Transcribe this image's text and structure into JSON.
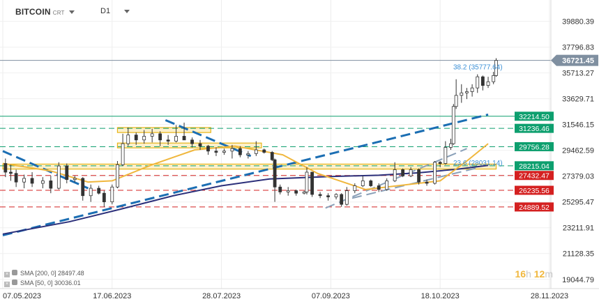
{
  "header": {
    "symbol": "BITCOIN",
    "symbol_suffix": "CRT",
    "timeframe": "D1"
  },
  "legend": [
    {
      "label": "SMA [200, 0]",
      "value": "28497.48",
      "color": "#2b2f7a"
    },
    {
      "label": "SMA [50, 0]",
      "value": "30036.01",
      "color": "#f0b73d"
    }
  ],
  "timer": {
    "hours": "16",
    "h_unit": "h",
    "minutes": "12",
    "m_unit": "m"
  },
  "chart_data": {
    "type": "candlestick",
    "x_range": [
      "2023-05-07",
      "2023-11-28"
    ],
    "ylim": [
      18300,
      41600
    ],
    "x_ticks": [
      {
        "label": "07.05.2023",
        "date": "2023-05-07"
      },
      {
        "label": "17.06.2023",
        "date": "2023-06-17"
      },
      {
        "label": "28.07.2023",
        "date": "2023-07-28"
      },
      {
        "label": "07.09.2023",
        "date": "2023-09-07"
      },
      {
        "label": "18.10.2023",
        "date": "2023-10-18"
      },
      {
        "label": "28.11.2023",
        "date": "2023-11-28"
      }
    ],
    "y_ticks": [
      {
        "label": "39880.39",
        "value": 39880.39
      },
      {
        "label": "37796.83",
        "value": 37796.83
      },
      {
        "label": "35713.27",
        "value": 35713.27
      },
      {
        "label": "33629.71",
        "value": 33629.71
      },
      {
        "label": "31546.15",
        "value": 31546.15
      },
      {
        "label": "29462.59",
        "value": 29462.59
      },
      {
        "label": "27379.03",
        "value": 27379.03
      },
      {
        "label": "25295.47",
        "value": 25295.47
      },
      {
        "label": "23211.91",
        "value": 23211.91
      },
      {
        "label": "21128.35",
        "value": 21128.35
      },
      {
        "label": "19044.79",
        "value": 19044.79
      }
    ],
    "current_price": {
      "label": "36721.45",
      "value": 36721.45,
      "color": "#7f8fa0"
    },
    "levels": [
      {
        "label": "32214.50",
        "value": 32214.5,
        "color": "#0d9f6e",
        "style": "solid"
      },
      {
        "label": "31236.46",
        "value": 31236.46,
        "color": "#0d9f6e",
        "style": "dashed"
      },
      {
        "label": "29756.28",
        "value": 29756.28,
        "color": "#0d9f6e",
        "style": "dashed"
      },
      {
        "label": "28215.04",
        "value": 28215.04,
        "color": "#0d9f6e",
        "style": "dashed"
      },
      {
        "label": "27432.47",
        "value": 27432.47,
        "color": "#d42020",
        "style": "dashed"
      },
      {
        "label": "26235.56",
        "value": 26235.56,
        "color": "#d42020",
        "style": "dashed"
      },
      {
        "label": "24889.52",
        "value": 24889.52,
        "color": "#d42020",
        "style": "dashed"
      }
    ],
    "fib_labels": [
      {
        "label": "38.2 (35777.64)",
        "value": 35777.64
      },
      {
        "label": "23.6 (28031.14)",
        "value": 28031.14
      }
    ],
    "sma200": [
      [
        "2023-05-07",
        22700
      ],
      [
        "2023-06-01",
        23700
      ],
      [
        "2023-06-20",
        24700
      ],
      [
        "2023-07-10",
        25800
      ],
      [
        "2023-07-28",
        26600
      ],
      [
        "2023-08-15",
        27150
      ],
      [
        "2023-09-07",
        27350
      ],
      [
        "2023-09-25",
        27450
      ],
      [
        "2023-10-10",
        27650
      ],
      [
        "2023-10-25",
        27950
      ],
      [
        "2023-11-05",
        28250
      ]
    ],
    "sma50": [
      [
        "2023-05-07",
        28400
      ],
      [
        "2023-05-25",
        27800
      ],
      [
        "2023-06-08",
        26900
      ],
      [
        "2023-06-17",
        27000
      ],
      [
        "2023-07-02",
        28300
      ],
      [
        "2023-07-18",
        29500
      ],
      [
        "2023-08-02",
        29800
      ],
      [
        "2023-08-20",
        29100
      ],
      [
        "2023-09-02",
        27600
      ],
      [
        "2023-09-20",
        26300
      ],
      [
        "2023-10-02",
        26600
      ],
      [
        "2023-10-18",
        27000
      ],
      [
        "2023-10-28",
        28600
      ],
      [
        "2023-11-05",
        30000
      ]
    ],
    "trendlines": [
      {
        "from": [
          "2023-05-07",
          22600
        ],
        "to": [
          "2023-11-05",
          32350
        ],
        "color": "#1b6eb3",
        "style": "dashed"
      },
      {
        "from": [
          "2023-05-07",
          29400
        ],
        "to": [
          "2023-06-08",
          26400
        ],
        "color": "#1b6eb3",
        "style": "dashed"
      },
      {
        "from": [
          "2023-07-07",
          31900
        ],
        "to": [
          "2023-08-08",
          29000
        ],
        "color": "#1b6eb3",
        "style": "dashed"
      },
      {
        "from": [
          "2023-09-05",
          24800
        ],
        "to": [
          "2023-10-28",
          29600
        ],
        "color": "#8aa0b8",
        "style": "dashed"
      },
      {
        "from": [
          "2023-09-15",
          25600
        ],
        "to": [
          "2023-11-02",
          28100
        ],
        "color": "#8aa0b8",
        "style": "dashed"
      }
    ],
    "zones": [
      {
        "from": "2023-06-19",
        "to": "2023-07-24",
        "low": 30900,
        "high": 31300,
        "color": "#f5d36b"
      },
      {
        "from": "2023-06-19",
        "to": "2023-08-12",
        "low": 29660,
        "high": 30050,
        "color": "#f5d36b"
      },
      {
        "from": "2023-05-07",
        "to": "2023-11-08",
        "low": 27950,
        "high": 28350,
        "color": "#f5d36b"
      }
    ],
    "candles": [
      [
        "2023-05-08",
        28400,
        28800,
        27300,
        27700
      ],
      [
        "2023-05-10",
        27700,
        28300,
        27000,
        27600
      ],
      [
        "2023-05-12",
        27600,
        27900,
        26500,
        26900
      ],
      [
        "2023-05-15",
        26900,
        27500,
        26400,
        27200
      ],
      [
        "2023-05-18",
        27200,
        27700,
        26500,
        26800
      ],
      [
        "2023-05-22",
        26800,
        27300,
        26400,
        27000
      ],
      [
        "2023-05-25",
        27000,
        27400,
        26000,
        26400
      ],
      [
        "2023-05-28",
        26400,
        28500,
        26300,
        28200
      ],
      [
        "2023-05-31",
        28200,
        28400,
        26800,
        27100
      ],
      [
        "2023-06-03",
        27100,
        27400,
        26900,
        27200
      ],
      [
        "2023-06-06",
        27200,
        27300,
        25400,
        25800
      ],
      [
        "2023-06-09",
        25800,
        26700,
        25300,
        26400
      ],
      [
        "2023-06-12",
        26400,
        26600,
        25900,
        26000
      ],
      [
        "2023-06-14",
        26000,
        26200,
        24900,
        25300
      ],
      [
        "2023-06-17",
        25300,
        26700,
        25100,
        26500
      ],
      [
        "2023-06-19",
        26500,
        28600,
        26400,
        28300
      ],
      [
        "2023-06-21",
        28300,
        30800,
        28200,
        30000
      ],
      [
        "2023-06-23",
        30000,
        31300,
        29800,
        30700
      ],
      [
        "2023-06-26",
        30700,
        30900,
        29900,
        30300
      ],
      [
        "2023-06-29",
        30300,
        31100,
        30000,
        30600
      ],
      [
        "2023-07-02",
        30600,
        31200,
        30100,
        30800
      ],
      [
        "2023-07-05",
        30800,
        31000,
        29800,
        30300
      ],
      [
        "2023-07-08",
        30300,
        30700,
        29900,
        30200
      ],
      [
        "2023-07-11",
        30200,
        31500,
        30100,
        30600
      ],
      [
        "2023-07-14",
        30600,
        31700,
        30300,
        30300
      ],
      [
        "2023-07-17",
        30300,
        30500,
        29700,
        30000
      ],
      [
        "2023-07-20",
        30000,
        30300,
        29500,
        29800
      ],
      [
        "2023-07-23",
        29800,
        29900,
        29100,
        29400
      ],
      [
        "2023-07-26",
        29400,
        29700,
        29000,
        29300
      ],
      [
        "2023-07-29",
        29300,
        29600,
        29100,
        29400
      ],
      [
        "2023-08-01",
        29400,
        29900,
        28800,
        29600
      ],
      [
        "2023-08-04",
        29600,
        29800,
        28900,
        29100
      ],
      [
        "2023-08-07",
        29100,
        29400,
        28800,
        29200
      ],
      [
        "2023-08-10",
        29200,
        30200,
        29000,
        29500
      ],
      [
        "2023-08-13",
        29500,
        29600,
        29200,
        29300
      ],
      [
        "2023-08-16",
        29300,
        29400,
        28600,
        28700
      ],
      [
        "2023-08-17",
        28700,
        28800,
        25300,
        26500
      ],
      [
        "2023-08-19",
        26500,
        26700,
        25900,
        26100
      ],
      [
        "2023-08-22",
        26100,
        26500,
        25800,
        26200
      ],
      [
        "2023-08-25",
        26200,
        26300,
        25800,
        26000
      ],
      [
        "2023-08-28",
        26000,
        26200,
        25900,
        26100
      ],
      [
        "2023-08-29",
        26100,
        28100,
        25900,
        27700
      ],
      [
        "2023-08-31",
        27700,
        27700,
        25700,
        25900
      ],
      [
        "2023-09-03",
        25900,
        26100,
        25600,
        25800
      ],
      [
        "2023-09-06",
        25800,
        26000,
        25400,
        25700
      ],
      [
        "2023-09-09",
        25700,
        26000,
        25500,
        25900
      ],
      [
        "2023-09-11",
        25900,
        26000,
        24900,
        25100
      ],
      [
        "2023-09-13",
        25100,
        26500,
        25000,
        26200
      ],
      [
        "2023-09-16",
        26200,
        26800,
        26000,
        26600
      ],
      [
        "2023-09-19",
        26600,
        27400,
        26500,
        27000
      ],
      [
        "2023-09-22",
        27000,
        27100,
        26500,
        26600
      ],
      [
        "2023-09-25",
        26600,
        26800,
        26100,
        26300
      ],
      [
        "2023-09-28",
        26300,
        27200,
        26200,
        27000
      ],
      [
        "2023-10-01",
        27000,
        28500,
        26900,
        27900
      ],
      [
        "2023-10-04",
        27900,
        28000,
        27300,
        27400
      ],
      [
        "2023-10-07",
        27400,
        28100,
        27300,
        27900
      ],
      [
        "2023-10-10",
        27900,
        28000,
        26700,
        26900
      ],
      [
        "2023-10-13",
        26900,
        27100,
        26600,
        26800
      ],
      [
        "2023-10-16",
        26800,
        28600,
        26700,
        28500
      ],
      [
        "2023-10-18",
        28500,
        28600,
        28100,
        28400
      ],
      [
        "2023-10-20",
        28400,
        30200,
        28300,
        29700
      ],
      [
        "2023-10-22",
        29700,
        30400,
        29500,
        30000
      ],
      [
        "2023-10-23",
        30000,
        33200,
        29900,
        33000
      ],
      [
        "2023-10-24",
        33000,
        35200,
        32800,
        33900
      ],
      [
        "2023-10-26",
        33900,
        34800,
        33300,
        34100
      ],
      [
        "2023-10-28",
        34100,
        34500,
        33600,
        34200
      ],
      [
        "2023-10-30",
        34200,
        34800,
        33800,
        34500
      ],
      [
        "2023-11-01",
        34500,
        35600,
        34100,
        35400
      ],
      [
        "2023-11-03",
        35400,
        35500,
        34300,
        34700
      ],
      [
        "2023-11-05",
        34700,
        35400,
        34500,
        35000
      ],
      [
        "2023-11-07",
        35000,
        35800,
        34800,
        35500
      ],
      [
        "2023-11-08",
        35500,
        36900,
        35400,
        36721.45
      ]
    ]
  }
}
